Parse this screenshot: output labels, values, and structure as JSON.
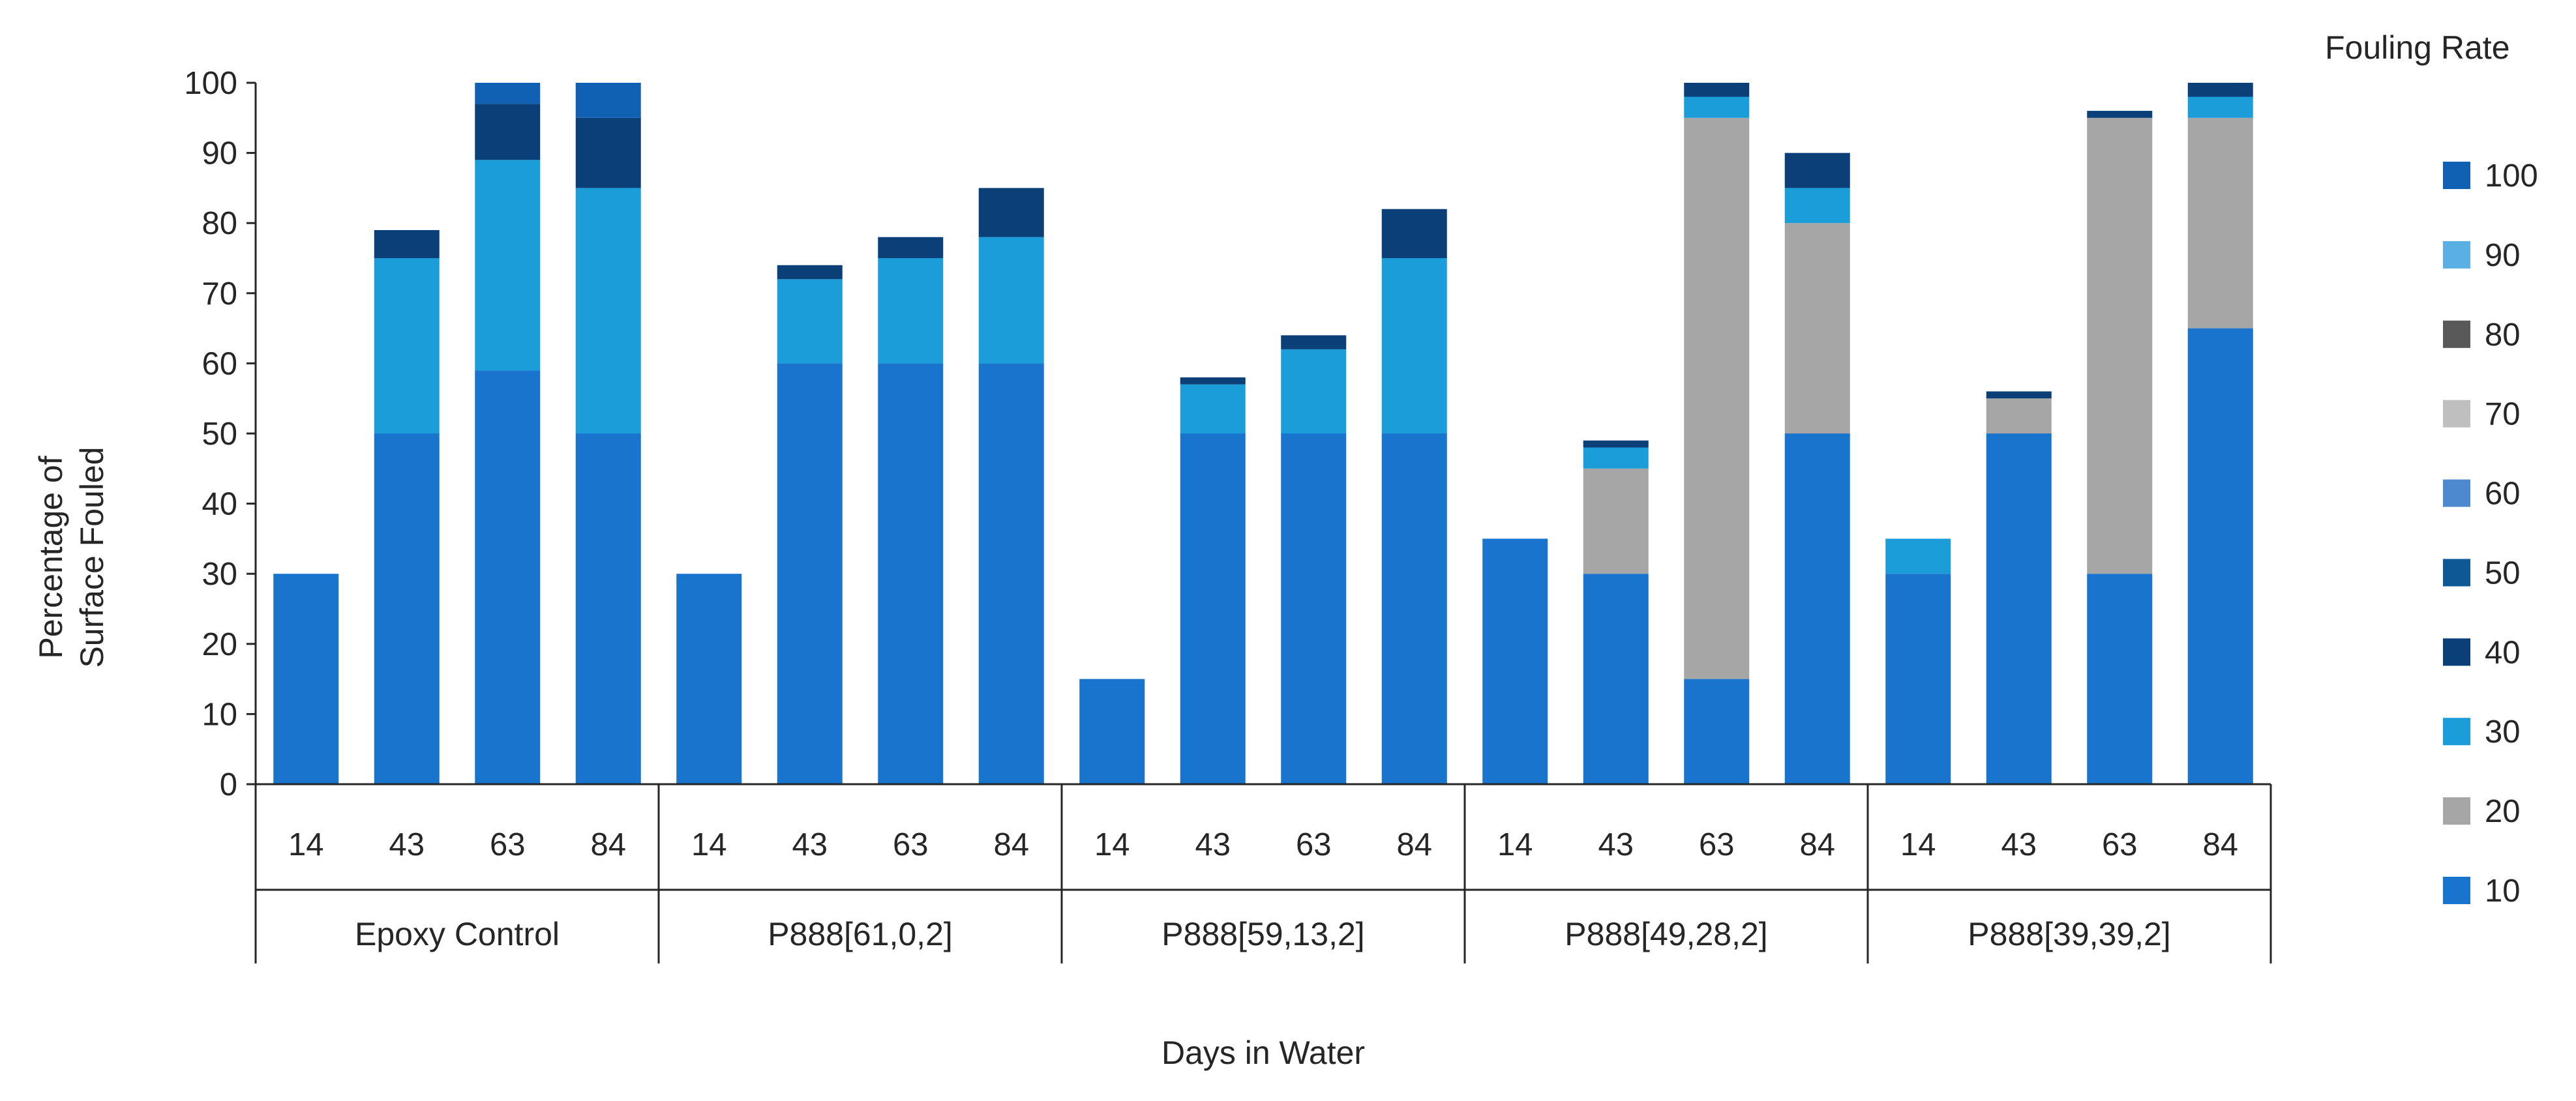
{
  "chart_data": {
    "type": "bar",
    "stacked": true,
    "ylabel_lines": [
      "Percentage of",
      "Surface Fouled"
    ],
    "xlabel": "Days in Water",
    "ylim": [
      0,
      100
    ],
    "y_ticks": [
      0,
      10,
      20,
      30,
      40,
      50,
      60,
      70,
      80,
      90,
      100
    ],
    "legend_title": "Fouling Rate",
    "legend_placement": "right",
    "legend_order": [
      "100",
      "90",
      "80",
      "70",
      "60",
      "50",
      "40",
      "30",
      "20",
      "10"
    ],
    "series": [
      {
        "name": "10",
        "color": "#1874CD"
      },
      {
        "name": "20",
        "color": "#A6A6A6"
      },
      {
        "name": "30",
        "color": "#1B9DD9"
      },
      {
        "name": "40",
        "color": "#0B3F78"
      },
      {
        "name": "50",
        "color": "#0F5896"
      },
      {
        "name": "60",
        "color": "#4D89CF"
      },
      {
        "name": "70",
        "color": "#BFBFBF"
      },
      {
        "name": "80",
        "color": "#595959"
      },
      {
        "name": "90",
        "color": "#5BB0E3"
      },
      {
        "name": "100",
        "color": "#1061B3"
      }
    ],
    "groups": [
      {
        "name": "Epoxy Control",
        "bars": [
          {
            "day": "14",
            "segments": [
              {
                "series": "10",
                "value": 30
              }
            ]
          },
          {
            "day": "43",
            "segments": [
              {
                "series": "10",
                "value": 50
              },
              {
                "series": "30",
                "value": 25
              },
              {
                "series": "40",
                "value": 4
              }
            ]
          },
          {
            "day": "63",
            "segments": [
              {
                "series": "10",
                "value": 59
              },
              {
                "series": "30",
                "value": 30
              },
              {
                "series": "40",
                "value": 8
              },
              {
                "series": "100",
                "value": 3
              }
            ]
          },
          {
            "day": "84",
            "segments": [
              {
                "series": "10",
                "value": 50
              },
              {
                "series": "30",
                "value": 35
              },
              {
                "series": "40",
                "value": 10
              },
              {
                "series": "100",
                "value": 5
              }
            ]
          }
        ]
      },
      {
        "name": "P888[61,0,2]",
        "bars": [
          {
            "day": "14",
            "segments": [
              {
                "series": "10",
                "value": 30
              }
            ]
          },
          {
            "day": "43",
            "segments": [
              {
                "series": "10",
                "value": 60
              },
              {
                "series": "30",
                "value": 12
              },
              {
                "series": "40",
                "value": 2
              }
            ]
          },
          {
            "day": "63",
            "segments": [
              {
                "series": "10",
                "value": 60
              },
              {
                "series": "30",
                "value": 15
              },
              {
                "series": "40",
                "value": 3
              }
            ]
          },
          {
            "day": "84",
            "segments": [
              {
                "series": "10",
                "value": 60
              },
              {
                "series": "30",
                "value": 18
              },
              {
                "series": "40",
                "value": 7
              }
            ]
          }
        ]
      },
      {
        "name": "P888[59,13,2]",
        "bars": [
          {
            "day": "14",
            "segments": [
              {
                "series": "10",
                "value": 15
              }
            ]
          },
          {
            "day": "43",
            "segments": [
              {
                "series": "10",
                "value": 50
              },
              {
                "series": "30",
                "value": 7
              },
              {
                "series": "40",
                "value": 1
              }
            ]
          },
          {
            "day": "63",
            "segments": [
              {
                "series": "10",
                "value": 50
              },
              {
                "series": "30",
                "value": 12
              },
              {
                "series": "40",
                "value": 2
              }
            ]
          },
          {
            "day": "84",
            "segments": [
              {
                "series": "10",
                "value": 50
              },
              {
                "series": "30",
                "value": 25
              },
              {
                "series": "40",
                "value": 7
              }
            ]
          }
        ]
      },
      {
        "name": "P888[49,28,2]",
        "bars": [
          {
            "day": "14",
            "segments": [
              {
                "series": "10",
                "value": 35
              }
            ]
          },
          {
            "day": "43",
            "segments": [
              {
                "series": "10",
                "value": 30
              },
              {
                "series": "20",
                "value": 15
              },
              {
                "series": "30",
                "value": 3
              },
              {
                "series": "40",
                "value": 1
              }
            ]
          },
          {
            "day": "63",
            "segments": [
              {
                "series": "10",
                "value": 15
              },
              {
                "series": "20",
                "value": 80
              },
              {
                "series": "30",
                "value": 3
              },
              {
                "series": "40",
                "value": 2
              }
            ]
          },
          {
            "day": "84",
            "segments": [
              {
                "series": "10",
                "value": 50
              },
              {
                "series": "20",
                "value": 30
              },
              {
                "series": "30",
                "value": 5
              },
              {
                "series": "40",
                "value": 5
              }
            ]
          }
        ]
      },
      {
        "name": "P888[39,39,2]",
        "bars": [
          {
            "day": "14",
            "segments": [
              {
                "series": "10",
                "value": 30
              },
              {
                "series": "30",
                "value": 5
              }
            ]
          },
          {
            "day": "43",
            "segments": [
              {
                "series": "10",
                "value": 50
              },
              {
                "series": "20",
                "value": 5
              },
              {
                "series": "40",
                "value": 1
              }
            ]
          },
          {
            "day": "63",
            "segments": [
              {
                "series": "10",
                "value": 30
              },
              {
                "series": "20",
                "value": 65
              },
              {
                "series": "40",
                "value": 1
              }
            ]
          },
          {
            "day": "84",
            "segments": [
              {
                "series": "10",
                "value": 65
              },
              {
                "series": "20",
                "value": 30
              },
              {
                "series": "30",
                "value": 3
              },
              {
                "series": "40",
                "value": 2
              }
            ]
          }
        ]
      }
    ]
  }
}
